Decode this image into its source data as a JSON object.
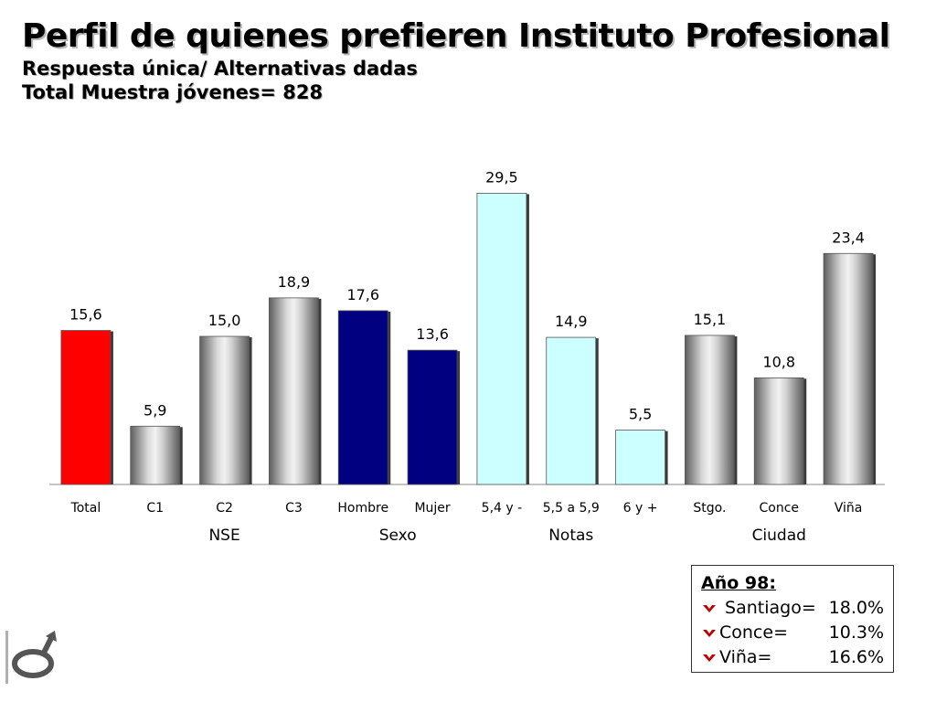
{
  "title": "Perfil de quienes prefieren Instituto Profesional",
  "subtitle1": "Respuesta única/ Alternativas dadas",
  "subtitle2": "Total Muestra jóvenes= 828",
  "chart_data": {
    "type": "bar",
    "categories": [
      "Total",
      "C1",
      "C2",
      "C3",
      "Hombre",
      "Mujer",
      "5,4 y -",
      "5,5 a 5,9",
      "6 y +",
      "Stgo.",
      "Conce",
      "Viña"
    ],
    "values": [
      15.6,
      5.9,
      15.0,
      18.9,
      17.6,
      13.6,
      29.5,
      14.9,
      5.5,
      15.1,
      10.8,
      23.4
    ],
    "data_labels": [
      "15,6",
      "5,9",
      "15,0",
      "18,9",
      "17,6",
      "13,6",
      "29,5",
      "14,9",
      "5,5",
      "15,1",
      "10,8",
      "23,4"
    ],
    "bar_colors": [
      "#ff0000",
      "gray",
      "gray",
      "gray",
      "#000080",
      "#000080",
      "#ccffff",
      "#ccffff",
      "#ccffff",
      "gray",
      "gray",
      "gray"
    ],
    "groups": [
      {
        "label": "NSE",
        "start": 1,
        "end": 3
      },
      {
        "label": "Sexo",
        "start": 4,
        "end": 5
      },
      {
        "label": "Notas",
        "start": 6,
        "end": 8
      },
      {
        "label": "Ciudad",
        "start": 9,
        "end": 11
      }
    ],
    "ylim": [
      0,
      30
    ],
    "grid": false,
    "title": "",
    "xlabel": "",
    "ylabel": ""
  },
  "note": {
    "title": "Año 98:",
    "rows": [
      {
        "label": " Santiago=",
        "value": "18.0%"
      },
      {
        "label": "Conce=",
        "value": "10.3%"
      },
      {
        "label": "Viña=",
        "value": "16.6%"
      }
    ],
    "arrow_color": "#c00000"
  }
}
